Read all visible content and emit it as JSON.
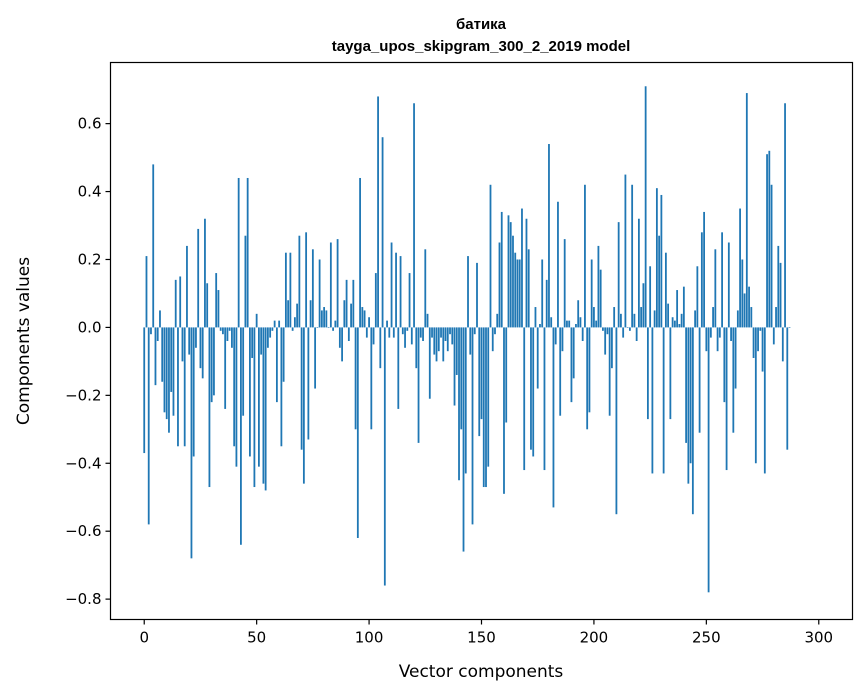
{
  "chart_data": {
    "type": "bar",
    "title_lines": [
      "батика",
      "tayga_upos_skipgram_300_2_2019 model"
    ],
    "xlabel": "Vector components",
    "ylabel": "Components values",
    "xlim": [
      -15,
      315
    ],
    "ylim": [
      -0.86,
      0.78
    ],
    "xticks": [
      0,
      50,
      100,
      150,
      200,
      250,
      300
    ],
    "xtick_labels": [
      "0",
      "50",
      "100",
      "150",
      "200",
      "250",
      "300"
    ],
    "yticks": [
      -0.8,
      -0.6,
      -0.4,
      -0.2,
      0.0,
      0.2,
      0.4,
      0.6
    ],
    "ytick_labels": [
      "−0.8",
      "−0.6",
      "−0.4",
      "−0.2",
      "0.0",
      "0.2",
      "0.4",
      "0.6"
    ],
    "bar_color": "#1f77b4",
    "values": [
      -0.37,
      0.21,
      -0.58,
      -0.02,
      0.48,
      -0.17,
      -0.04,
      0.05,
      -0.16,
      -0.25,
      -0.27,
      -0.31,
      -0.19,
      -0.26,
      0.14,
      -0.35,
      0.15,
      -0.1,
      -0.35,
      0.24,
      -0.08,
      -0.68,
      -0.38,
      -0.06,
      0.29,
      -0.12,
      -0.15,
      0.32,
      0.13,
      -0.47,
      -0.22,
      -0.2,
      0.16,
      0.11,
      -0.01,
      -0.02,
      -0.24,
      -0.04,
      -0.01,
      -0.06,
      -0.35,
      -0.41,
      0.44,
      -0.64,
      -0.26,
      0.27,
      0.44,
      -0.38,
      -0.09,
      -0.47,
      0.04,
      -0.41,
      -0.08,
      -0.46,
      -0.48,
      -0.06,
      -0.03,
      -0.01,
      0.02,
      -0.22,
      0.02,
      -0.35,
      -0.16,
      0.22,
      0.08,
      0.22,
      -0.01,
      0.03,
      0.07,
      0.27,
      -0.36,
      -0.46,
      0.28,
      -0.33,
      0.08,
      0.23,
      -0.18,
      0.0,
      0.2,
      0.05,
      0.06,
      0.05,
      0.0,
      0.25,
      -0.01,
      0.02,
      0.26,
      -0.06,
      -0.1,
      0.08,
      0.14,
      -0.04,
      0.07,
      0.14,
      -0.3,
      -0.62,
      0.44,
      0.06,
      0.05,
      -0.03,
      0.03,
      -0.3,
      -0.05,
      0.16,
      0.68,
      -0.12,
      0.56,
      -0.76,
      0.02,
      -0.03,
      0.25,
      -0.03,
      0.22,
      -0.24,
      0.21,
      -0.02,
      -0.06,
      -0.01,
      0.16,
      -0.05,
      0.66,
      -0.12,
      -0.34,
      -0.03,
      -0.04,
      0.23,
      0.04,
      -0.21,
      -0.03,
      -0.08,
      -0.1,
      -0.07,
      -0.03,
      -0.1,
      -0.04,
      -0.07,
      -0.02,
      -0.05,
      -0.23,
      -0.14,
      -0.45,
      -0.3,
      -0.66,
      -0.43,
      0.21,
      -0.08,
      -0.58,
      -0.02,
      0.19,
      -0.32,
      -0.27,
      -0.47,
      -0.47,
      -0.41,
      0.42,
      -0.07,
      -0.02,
      0.04,
      0.25,
      0.34,
      -0.49,
      -0.28,
      0.33,
      0.31,
      0.27,
      0.22,
      0.2,
      0.2,
      0.35,
      -0.42,
      0.32,
      0.23,
      -0.36,
      -0.38,
      0.06,
      -0.18,
      0.01,
      0.2,
      -0.42,
      0.14,
      0.54,
      0.03,
      -0.53,
      -0.05,
      0.37,
      -0.26,
      -0.07,
      0.26,
      0.02,
      0.02,
      -0.22,
      -0.15,
      0.01,
      0.08,
      0.03,
      -0.04,
      0.42,
      -0.3,
      -0.25,
      0.2,
      0.06,
      0.02,
      0.24,
      0.17,
      -0.01,
      -0.08,
      -0.02,
      -0.26,
      -0.12,
      0.06,
      -0.55,
      0.31,
      0.04,
      -0.03,
      0.45,
      0.0,
      -0.01,
      0.42,
      0.04,
      -0.04,
      0.32,
      0.06,
      0.13,
      0.71,
      -0.27,
      0.18,
      -0.43,
      0.05,
      0.41,
      0.27,
      0.39,
      -0.43,
      0.22,
      0.07,
      -0.27,
      0.03,
      0.02,
      0.11,
      0.01,
      0.04,
      0.12,
      -0.34,
      -0.46,
      -0.4,
      -0.55,
      0.05,
      0.18,
      -0.31,
      0.28,
      0.34,
      -0.07,
      -0.78,
      -0.03,
      0.06,
      0.23,
      -0.07,
      -0.03,
      0.28,
      -0.22,
      -0.42,
      0.25,
      -0.04,
      -0.31,
      -0.18,
      0.05,
      0.35,
      0.2,
      0.1,
      0.69,
      0.12,
      0.06,
      -0.09,
      -0.4,
      -0.07,
      -0.01,
      -0.13,
      -0.43,
      0.51,
      0.52,
      0.42,
      -0.05,
      0.06,
      0.24,
      0.19,
      -0.1,
      0.66,
      -0.36,
      0.0
    ]
  }
}
